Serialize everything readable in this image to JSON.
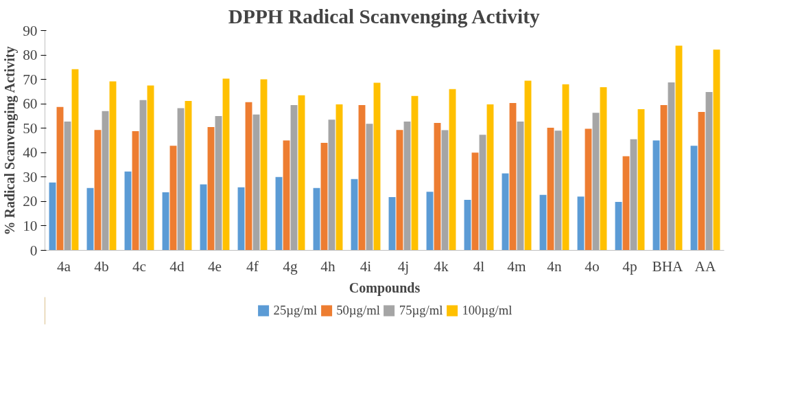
{
  "chart_data": {
    "type": "bar",
    "title": "DPPH Radical Scanvenging Activity",
    "xlabel": "Compounds",
    "ylabel": "% Radical Scanvenging Activity",
    "categories": [
      "4a",
      "4b",
      "4c",
      "4d",
      "4e",
      "4f",
      "4g",
      "4h",
      "4i",
      "4j",
      "4k",
      "4l",
      "4m",
      "4n",
      "4o",
      "4p",
      "BHA",
      "AA"
    ],
    "series": [
      {
        "name": "25µg/ml",
        "color": "#5b9bd5",
        "values": [
          27.8,
          25.5,
          32.3,
          23.8,
          27,
          25.8,
          30,
          25.5,
          29.2,
          21.8,
          24,
          20.7,
          31.5,
          22.7,
          22,
          19.8,
          45,
          42.8
        ]
      },
      {
        "name": "50µg/ml",
        "color": "#ed7d31",
        "values": [
          58.7,
          49.3,
          48.8,
          42.8,
          50.5,
          60.7,
          45,
          44,
          59.5,
          49.3,
          52.2,
          40,
          60.3,
          50.2,
          49.8,
          38.5,
          59.5,
          56.7
        ]
      },
      {
        "name": "75µg/ml",
        "color": "#a5a5a5",
        "values": [
          52.7,
          57,
          61.5,
          58.2,
          55,
          55.6,
          59.5,
          53.5,
          51.8,
          52.7,
          49.2,
          47.3,
          52.7,
          49,
          56.3,
          45.5,
          68.8,
          64.8
        ]
      },
      {
        "name": "100µg/ml",
        "color": "#ffc000",
        "values": [
          74.2,
          69.2,
          67.5,
          61.2,
          70.3,
          70,
          63.5,
          59.8,
          68.6,
          63.2,
          66,
          59.8,
          69.5,
          68,
          66.8,
          57.8,
          83.8,
          82.2
        ]
      }
    ],
    "ylim": [
      0,
      90
    ],
    "yticks": [
      0,
      10,
      20,
      30,
      40,
      50,
      60,
      70,
      80,
      90
    ],
    "grid": false,
    "legend": "bottom"
  }
}
